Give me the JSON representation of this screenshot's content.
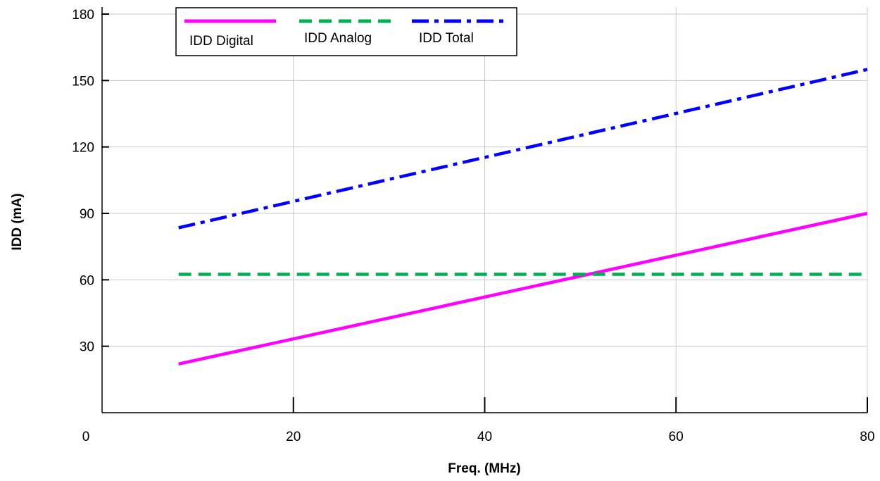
{
  "chart_data": {
    "type": "line",
    "title": "",
    "xlabel": "Freq. (MHz)",
    "ylabel": "IDD (mA)",
    "xlim": [
      0,
      80
    ],
    "ylim": [
      0,
      180
    ],
    "xticks": [
      0,
      20,
      40,
      60,
      80
    ],
    "yticks": [
      30,
      60,
      90,
      120,
      150,
      180
    ],
    "xtick_labels": [
      "0",
      "20",
      "40",
      "60",
      "80"
    ],
    "ytick_labels": [
      "30",
      "60",
      "90",
      "120",
      "150",
      "180"
    ],
    "grid": true,
    "legend_position": "top-left",
    "series": [
      {
        "name": "IDD Digital",
        "color": "#ff00ff",
        "style": "solid",
        "x": [
          8,
          80
        ],
        "y": [
          22,
          90
        ]
      },
      {
        "name": "IDD Analog",
        "color": "#00b050",
        "style": "dashed",
        "x": [
          8,
          80
        ],
        "y": [
          62.5,
          62.5
        ]
      },
      {
        "name": "IDD Total",
        "color": "#0000ff",
        "style": "dash-dot",
        "x": [
          8,
          80
        ],
        "y": [
          83.5,
          155
        ]
      }
    ]
  }
}
